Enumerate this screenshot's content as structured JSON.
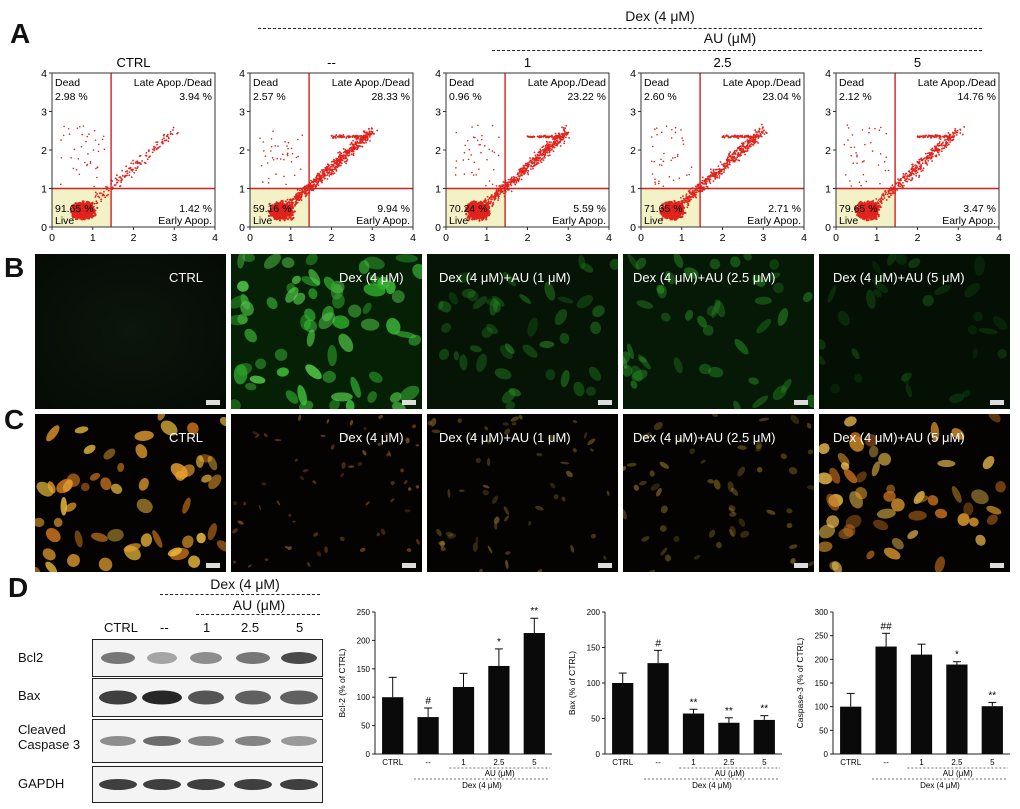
{
  "panel_letters": [
    "A",
    "B",
    "C",
    "D"
  ],
  "header_a": {
    "dex": "Dex (4 μM)",
    "au": "AU (μM)"
  },
  "flow": [
    {
      "title": "CTRL",
      "dead": "2.98 %",
      "late": "3.94 %",
      "live": "91.65 %",
      "early": "1.42 %"
    },
    {
      "title": "--",
      "dead": "2.57 %",
      "late": "28.33 %",
      "live": "59.16 %",
      "early": "9.94 %"
    },
    {
      "title": "1",
      "dead": "0.96 %",
      "late": "23.22 %",
      "live": "70.24 %",
      "early": "5.59 %"
    },
    {
      "title": "2.5",
      "dead": "2.60 %",
      "late": "23.04 %",
      "live": "71.65 %",
      "early": "2.71 %"
    },
    {
      "title": "5",
      "dead": "2.12 %",
      "late": "14.76 %",
      "live": "79.65 %",
      "early": "3.47 %"
    }
  ],
  "flow_labels": {
    "dead": "Dead",
    "late": "Late Apop./Dead",
    "live": "Live",
    "early": "Early Apop."
  },
  "flow_ticks": [
    "0",
    "1",
    "2",
    "3",
    "4"
  ],
  "micro_b": [
    "CTRL",
    "Dex (4 μM)",
    "Dex (4 μM)+AU (1 μM)",
    "Dex (4 μM)+AU (2.5 μM)",
    "Dex (4 μM)+AU (5 μM)"
  ],
  "micro_c": [
    "CTRL",
    "Dex (4 μM)",
    "Dex (4 μM)+AU (1 μM)",
    "Dex (4 μM)+AU (2.5 μM)",
    "Dex (4 μM)+AU (5 μM)"
  ],
  "blot": {
    "dex": "Dex  (4 μM)",
    "au": "AU  (μM)",
    "lanes": [
      "CTRL",
      "--",
      "1",
      "2.5",
      "5"
    ],
    "rows": [
      "Bcl2",
      "Bax",
      "Cleaved Caspase 3",
      "GAPDH"
    ]
  },
  "colors": {
    "dot": "#e0241c",
    "gate": "#d62020",
    "live_bg": "#f3f2c6",
    "green": "#3fbf3a",
    "orange": "#e8a030"
  },
  "chart_data": [
    {
      "type": "bar",
      "ylabel": "Bcl-2 (% of CTRL)",
      "ylim": [
        0,
        250
      ],
      "yticks": [
        0,
        50,
        100,
        150,
        200,
        250
      ],
      "categories": [
        "CTRL",
        "--",
        "1",
        "2.5",
        "5"
      ],
      "values": [
        100,
        65,
        118,
        155,
        213
      ],
      "errors": [
        35,
        16,
        24,
        30,
        26
      ],
      "annotations": [
        "",
        "#",
        "",
        "*",
        "**"
      ],
      "xgroup_au": "AU (μM)",
      "xgroup_dex": "Dex (4 μM)"
    },
    {
      "type": "bar",
      "ylabel": "Bax (% of CTRL)",
      "ylim": [
        0,
        200
      ],
      "yticks": [
        0,
        50,
        100,
        150,
        200
      ],
      "categories": [
        "CTRL",
        "--",
        "1",
        "2.5",
        "5"
      ],
      "values": [
        100,
        128,
        57,
        44,
        48
      ],
      "errors": [
        14,
        18,
        6,
        7,
        6
      ],
      "annotations": [
        "",
        "#",
        "**",
        "**",
        "**"
      ],
      "xgroup_au": "AU (μM)",
      "xgroup_dex": "Dex (4 μM)"
    },
    {
      "type": "bar",
      "ylabel": "Caspase-3 (% of CTRL)",
      "ylim": [
        0,
        300
      ],
      "yticks": [
        0,
        50,
        100,
        150,
        200,
        250,
        300
      ],
      "categories": [
        "CTRL",
        "--",
        "1",
        "2.5",
        "5"
      ],
      "values": [
        100,
        227,
        210,
        189,
        101
      ],
      "errors": [
        28,
        28,
        22,
        6,
        8
      ],
      "annotations": [
        "",
        "##",
        "",
        "*",
        "**"
      ],
      "xgroup_au": "AU (μM)",
      "xgroup_dex": "Dex (4 μM)"
    }
  ]
}
